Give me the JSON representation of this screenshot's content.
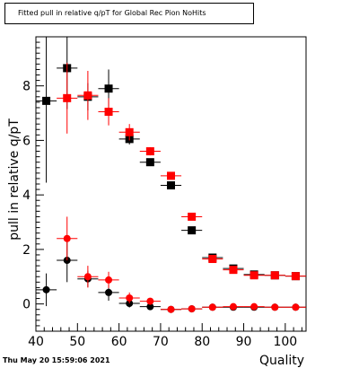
{
  "title": "Fitted pull in relative q/pT for Global Rec Pion NoHits",
  "timestamp": "Thu May 20 15:59:06 2021",
  "chart_data": {
    "type": "scatter",
    "title": "Fitted pull in relative q/pT for Global Rec Pion NoHits",
    "xlabel": "Quality",
    "ylabel": "pull in relative q/pT",
    "xlim": [
      40,
      105
    ],
    "ylim": [
      -1.0,
      9.8
    ],
    "xticks": [
      40,
      50,
      60,
      70,
      80,
      90,
      100
    ],
    "yticks": [
      0,
      2,
      4,
      6,
      8
    ],
    "x_half_width": 2.5,
    "grid": false,
    "legend": "none",
    "series": [
      {
        "marker": "square",
        "color": "#000000",
        "points": [
          {
            "x": 42.5,
            "y": 7.45,
            "err": 3.0
          },
          {
            "x": 47.5,
            "y": 8.65,
            "err": 1.5
          },
          {
            "x": 52.5,
            "y": 7.6,
            "err": 0.5
          },
          {
            "x": 57.5,
            "y": 7.9,
            "err": 0.7
          },
          {
            "x": 62.5,
            "y": 6.05,
            "err": 0.2
          },
          {
            "x": 67.5,
            "y": 5.2,
            "err": 0.1
          },
          {
            "x": 72.5,
            "y": 4.35,
            "err": 0.05
          },
          {
            "x": 77.5,
            "y": 2.7,
            "err": 0.05
          },
          {
            "x": 82.5,
            "y": 1.7,
            "err": 0.05
          },
          {
            "x": 87.5,
            "y": 1.3,
            "err": 0.03
          },
          {
            "x": 92.5,
            "y": 1.08,
            "err": 0.03
          },
          {
            "x": 97.5,
            "y": 1.05,
            "err": 0.02
          },
          {
            "x": 102.5,
            "y": 1.02,
            "err": 0.02
          }
        ]
      },
      {
        "marker": "square",
        "color": "#ff0000",
        "points": [
          {
            "x": 47.5,
            "y": 7.55,
            "err": 1.3
          },
          {
            "x": 52.5,
            "y": 7.65,
            "err": 0.9
          },
          {
            "x": 57.5,
            "y": 7.05,
            "err": 0.5
          },
          {
            "x": 62.5,
            "y": 6.3,
            "err": 0.3
          },
          {
            "x": 67.5,
            "y": 5.6,
            "err": 0.15
          },
          {
            "x": 72.5,
            "y": 4.7,
            "err": 0.08
          },
          {
            "x": 77.5,
            "y": 3.2,
            "err": 0.05
          },
          {
            "x": 82.5,
            "y": 1.65,
            "err": 0.05
          },
          {
            "x": 87.5,
            "y": 1.25,
            "err": 0.03
          },
          {
            "x": 92.5,
            "y": 1.05,
            "err": 0.03
          },
          {
            "x": 97.5,
            "y": 1.05,
            "err": 0.02
          },
          {
            "x": 102.5,
            "y": 1.02,
            "err": 0.02
          }
        ]
      },
      {
        "marker": "circle",
        "color": "#000000",
        "points": [
          {
            "x": 42.5,
            "y": 0.52,
            "err": 0.6
          },
          {
            "x": 47.5,
            "y": 1.6,
            "err": 0.8
          },
          {
            "x": 52.5,
            "y": 0.92,
            "err": 0.3
          },
          {
            "x": 57.5,
            "y": 0.42,
            "err": 0.3
          },
          {
            "x": 62.5,
            "y": 0.02,
            "err": 0.15
          },
          {
            "x": 67.5,
            "y": -0.1,
            "err": 0.08
          },
          {
            "x": 72.5,
            "y": -0.2,
            "err": 0.05
          },
          {
            "x": 77.5,
            "y": -0.18,
            "err": 0.03
          },
          {
            "x": 82.5,
            "y": -0.12,
            "err": 0.02
          },
          {
            "x": 87.5,
            "y": -0.12,
            "err": 0.02
          },
          {
            "x": 92.5,
            "y": -0.12,
            "err": 0.02
          },
          {
            "x": 97.5,
            "y": -0.12,
            "err": 0.02
          },
          {
            "x": 102.5,
            "y": -0.12,
            "err": 0.02
          }
        ]
      },
      {
        "marker": "circle",
        "color": "#ff0000",
        "points": [
          {
            "x": 47.5,
            "y": 2.4,
            "err": 0.8
          },
          {
            "x": 52.5,
            "y": 1.0,
            "err": 0.4
          },
          {
            "x": 57.5,
            "y": 0.88,
            "err": 0.3
          },
          {
            "x": 62.5,
            "y": 0.22,
            "err": 0.2
          },
          {
            "x": 67.5,
            "y": 0.1,
            "err": 0.1
          },
          {
            "x": 72.5,
            "y": -0.2,
            "err": 0.05
          },
          {
            "x": 77.5,
            "y": -0.18,
            "err": 0.03
          },
          {
            "x": 82.5,
            "y": -0.12,
            "err": 0.02
          },
          {
            "x": 87.5,
            "y": -0.1,
            "err": 0.02
          },
          {
            "x": 92.5,
            "y": -0.1,
            "err": 0.02
          },
          {
            "x": 97.5,
            "y": -0.12,
            "err": 0.02
          },
          {
            "x": 102.5,
            "y": -0.12,
            "err": 0.02
          }
        ]
      }
    ]
  }
}
